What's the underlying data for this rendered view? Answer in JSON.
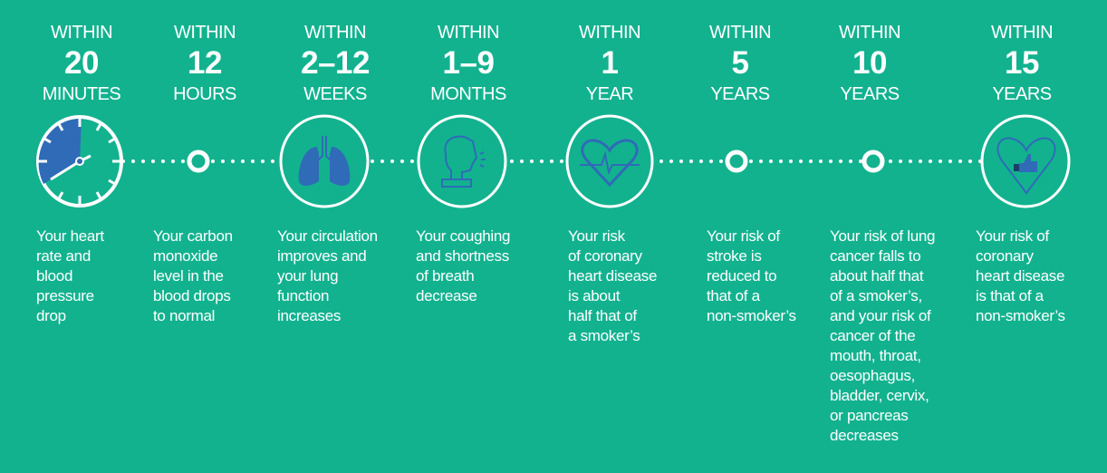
{
  "colors": {
    "background": "#12b28f",
    "icon_blue": "#2f6bb7",
    "white": "#ffffff"
  },
  "milestones": [
    {
      "within": "WITHIN",
      "number": "20",
      "unit": "MINUTES",
      "icon": "clock-icon",
      "text": "Your heart\nrate and\nblood\npressure\ndrop"
    },
    {
      "within": "WITHIN",
      "number": "12",
      "unit": "HOURS",
      "icon": "ring-marker-icon",
      "text": "Your carbon\nmonoxide\nlevel in the\nblood drops\nto normal"
    },
    {
      "within": "WITHIN",
      "number": "2–12",
      "unit": "WEEKS",
      "icon": "lungs-icon",
      "text": "Your circulation\nimproves and\nyour lung\nfunction\nincreases"
    },
    {
      "within": "WITHIN",
      "number": "1–9",
      "unit": "MONTHS",
      "icon": "coughing-head-icon",
      "text": "Your coughing\nand shortness\nof breath\ndecrease"
    },
    {
      "within": "WITHIN",
      "number": "1",
      "unit": "YEAR",
      "icon": "heartbeat-icon",
      "text": "Your risk\nof coronary\nheart disease\nis about\nhalf that of\na smoker’s"
    },
    {
      "within": "WITHIN",
      "number": "5",
      "unit": "YEARS",
      "icon": "ring-marker-icon",
      "text": "Your risk of\nstroke is\nreduced to\nthat of a\nnon-smoker’s"
    },
    {
      "within": "WITHIN",
      "number": "10",
      "unit": "YEARS",
      "icon": "ring-marker-icon",
      "text": "Your risk of lung\ncancer falls to\nabout half that\nof a smoker’s,\nand your risk of\ncancer of the\nmouth, throat,\noesophagus,\nbladder, cervix,\nor pancreas\ndecreases"
    },
    {
      "within": "WITHIN",
      "number": "15",
      "unit": "YEARS",
      "icon": "heart-thumbs-up-icon",
      "text": "Your risk of\ncoronary\nheart disease\nis that of a\nnon-smoker’s"
    }
  ]
}
